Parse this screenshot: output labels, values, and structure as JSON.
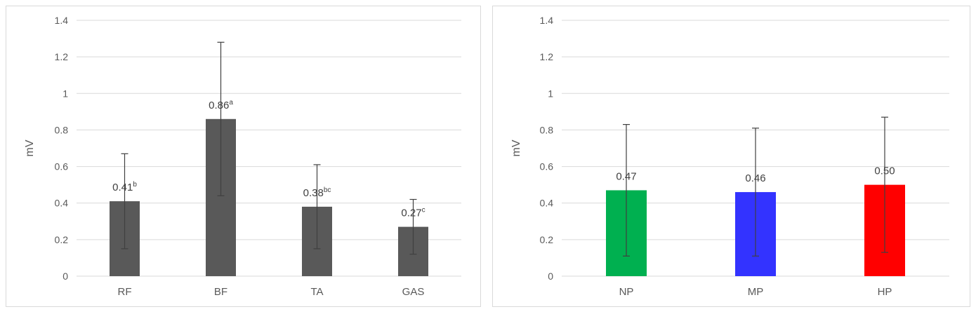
{
  "chart_data": [
    {
      "type": "bar",
      "title": "",
      "ylabel": "mV",
      "xlabel": "",
      "ylim": [
        0,
        1.4
      ],
      "yticks": [
        "0",
        "0.2",
        "0.4",
        "0.6",
        "0.8",
        "1",
        "1.2",
        "1.4"
      ],
      "grid": true,
      "categories": [
        "RF",
        "BF",
        "TA",
        "GAS"
      ],
      "values": [
        0.41,
        0.86,
        0.38,
        0.27
      ],
      "error": [
        0.26,
        0.42,
        0.23,
        0.15
      ],
      "labels": [
        "0.41",
        "0.86",
        "0.38",
        "0.27"
      ],
      "superscripts": [
        "b",
        "a",
        "bc",
        "c"
      ],
      "colors": [
        "#595959",
        "#595959",
        "#595959",
        "#595959"
      ]
    },
    {
      "type": "bar",
      "title": "",
      "ylabel": "mV",
      "xlabel": "",
      "ylim": [
        0,
        1.4
      ],
      "yticks": [
        "0",
        "0.2",
        "0.4",
        "0.6",
        "0.8",
        "1",
        "1.2",
        "1.4"
      ],
      "grid": true,
      "categories": [
        "NP",
        "MP",
        "HP"
      ],
      "values": [
        0.47,
        0.46,
        0.5
      ],
      "error": [
        0.36,
        0.35,
        0.37
      ],
      "labels": [
        "0.47",
        "0.46",
        "0.50"
      ],
      "superscripts": [
        "",
        "",
        ""
      ],
      "colors": [
        "#00b050",
        "#3333ff",
        "#ff0000"
      ]
    }
  ]
}
